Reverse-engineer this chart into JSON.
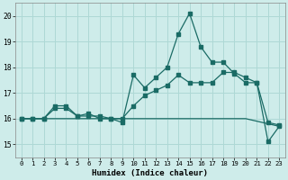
{
  "xlabel": "Humidex (Indice chaleur)",
  "background_color": "#ceecea",
  "grid_color": "#aed8d5",
  "line_color": "#1a6b65",
  "xlim": [
    -0.5,
    23.5
  ],
  "ylim": [
    14.5,
    20.5
  ],
  "yticks": [
    15,
    16,
    17,
    18,
    19,
    20
  ],
  "xticks": [
    0,
    1,
    2,
    3,
    4,
    5,
    6,
    7,
    8,
    9,
    10,
    11,
    12,
    13,
    14,
    15,
    16,
    17,
    18,
    19,
    20,
    21,
    22,
    23
  ],
  "series1_x": [
    0,
    1,
    2,
    3,
    4,
    5,
    6,
    7,
    8,
    9,
    10,
    11,
    12,
    13,
    14,
    15,
    16,
    17,
    18,
    19,
    20,
    21,
    22,
    23
  ],
  "series1_y": [
    16.0,
    16.0,
    16.0,
    16.0,
    16.0,
    16.0,
    16.0,
    16.0,
    16.0,
    16.0,
    16.0,
    16.0,
    16.0,
    16.0,
    16.0,
    16.0,
    16.0,
    16.0,
    16.0,
    16.0,
    16.0,
    15.9,
    15.8,
    15.7
  ],
  "series2_x": [
    0,
    1,
    2,
    3,
    4,
    5,
    6,
    7,
    8,
    9,
    10,
    11,
    12,
    13,
    14,
    15,
    16,
    17,
    18,
    19,
    20,
    21,
    22,
    23
  ],
  "series2_y": [
    16.0,
    16.0,
    16.0,
    16.4,
    16.4,
    16.1,
    16.1,
    16.1,
    16.0,
    16.0,
    16.5,
    16.9,
    17.1,
    17.3,
    17.7,
    17.4,
    17.4,
    17.4,
    17.8,
    17.8,
    17.6,
    17.4,
    15.85,
    15.75
  ],
  "series3_x": [
    0,
    1,
    2,
    3,
    4,
    5,
    6,
    7,
    8,
    9,
    10,
    11,
    12,
    13,
    14,
    15,
    16,
    17,
    18,
    19,
    20,
    21,
    22,
    23
  ],
  "series3_y": [
    16.0,
    16.0,
    16.0,
    16.5,
    16.5,
    16.1,
    16.2,
    16.0,
    16.0,
    15.85,
    17.7,
    17.2,
    17.6,
    18.0,
    19.3,
    20.1,
    18.8,
    18.2,
    18.2,
    17.75,
    17.4,
    17.4,
    15.1,
    15.7
  ]
}
